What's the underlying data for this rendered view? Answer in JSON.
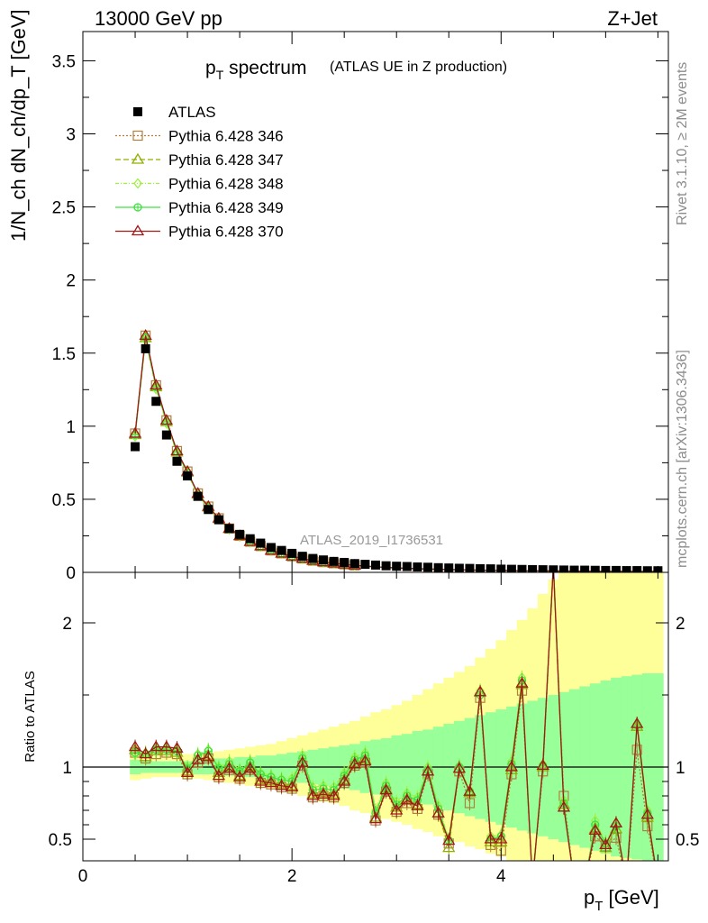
{
  "header": {
    "energy_label": "13000 GeV pp",
    "process_label": "Z+Jet"
  },
  "side_labels": {
    "rivet": "Rivet 3.1.10, ≥ 2M events",
    "mcplots": "mcplots.cern.ch [arXiv:1306.3436]"
  },
  "colors": {
    "atlas": "#000000",
    "p346": "#b08040",
    "p347": "#90b000",
    "p348": "#a0f040",
    "p349": "#40e040",
    "p370": "#a01818",
    "band_outer": "#ffff99",
    "band_inner": "#99ff99"
  },
  "chart_data": [
    {
      "type": "line",
      "title_main": "p",
      "title_sub": "T",
      "title_rest": " spectrum",
      "title_note": "(ATLAS UE in Z production)",
      "ylabel": "1/N_ch dN_ch/dp_T [GeV]",
      "watermark": "ATLAS_2019_I1736531",
      "xlim": [
        0,
        5.6
      ],
      "ylim": [
        0,
        3.7
      ],
      "yticks": [
        "0",
        "0.5",
        "1",
        "1.5",
        "2",
        "2.5",
        "3",
        "3.5"
      ],
      "x": [
        0.5,
        0.6,
        0.7,
        0.8,
        0.9,
        1.0,
        1.1,
        1.2,
        1.3,
        1.4,
        1.5,
        1.6,
        1.7,
        1.8,
        1.9,
        2.0,
        2.1,
        2.2,
        2.3,
        2.4,
        2.5,
        2.6,
        2.7,
        2.8,
        2.9,
        3.0,
        3.1,
        3.2,
        3.3,
        3.4,
        3.5,
        3.6,
        3.7,
        3.8,
        3.9,
        4.0,
        4.1,
        4.2,
        4.3,
        4.4,
        4.5,
        4.6,
        4.7,
        4.8,
        4.9,
        5.0,
        5.1,
        5.2,
        5.3,
        5.4,
        5.5
      ],
      "legend": [
        {
          "name": "ATLAS",
          "marker": "square"
        },
        {
          "name": "Pythia 6.428 346",
          "marker": "open-square"
        },
        {
          "name": "Pythia 6.428 347",
          "marker": "open-triangle"
        },
        {
          "name": "Pythia 6.428 348",
          "marker": "open-diamond"
        },
        {
          "name": "Pythia 6.428 349",
          "marker": "open-circle-cross"
        },
        {
          "name": "Pythia 6.428 370",
          "marker": "open-triangle"
        }
      ],
      "atlas_values": [
        0.86,
        1.53,
        1.17,
        0.94,
        0.76,
        0.66,
        0.52,
        0.43,
        0.36,
        0.3,
        0.26,
        0.23,
        0.2,
        0.17,
        0.15,
        0.13,
        0.11,
        0.095,
        0.085,
        0.075,
        0.068,
        0.06,
        0.055,
        0.05,
        0.045,
        0.042,
        0.04,
        0.037,
        0.035,
        0.032,
        0.03,
        0.028,
        0.027,
        0.025,
        0.024,
        0.022,
        0.021,
        0.02,
        0.019,
        0.018,
        0.017,
        0.016,
        0.015,
        0.015,
        0.014,
        0.013,
        0.013,
        0.012,
        0.012,
        0.011,
        0.011
      ],
      "pythia_values": [
        0.95,
        1.62,
        1.28,
        1.04,
        0.83,
        0.69,
        0.54,
        0.45,
        0.37,
        0.3,
        0.25,
        0.21,
        0.18,
        0.15,
        0.13,
        0.11,
        0.095,
        0.08,
        0.07,
        0.062,
        0.055,
        0.048,
        0.043,
        0.038,
        0.034,
        0.03,
        0.028,
        0.025,
        0.023,
        0.021,
        0.019,
        0.018,
        0.016,
        0.015,
        0.014,
        0.013,
        0.012,
        0.011,
        0.01,
        0.01,
        0.009,
        0.009,
        0.008,
        0.008,
        0.007,
        0.007,
        0.007,
        0.006,
        0.006,
        0.006,
        0.006
      ]
    },
    {
      "type": "line",
      "ylabel": "Ratio to ATLAS",
      "xlabel_main": "p",
      "xlabel_sub": "T",
      "xlabel_rest": " [GeV]",
      "xlim": [
        0,
        5.6
      ],
      "ylim": [
        0.35,
        2.35
      ],
      "xticks": [
        "0",
        "2",
        "4"
      ],
      "yticks": [
        "0.5",
        "1",
        "2"
      ],
      "x": [
        0.5,
        0.6,
        0.7,
        0.8,
        0.9,
        1.0,
        1.1,
        1.2,
        1.3,
        1.4,
        1.5,
        1.6,
        1.7,
        1.8,
        1.9,
        2.0,
        2.1,
        2.2,
        2.3,
        2.4,
        2.5,
        2.6,
        2.7,
        2.8,
        2.9,
        3.0,
        3.1,
        3.2,
        3.3,
        3.4,
        3.5,
        3.6,
        3.7,
        3.8,
        3.9,
        4.0,
        4.1,
        4.2,
        4.3,
        4.4,
        4.5,
        4.6,
        4.7,
        4.8,
        4.9,
        5.0,
        5.1,
        5.2,
        5.3,
        5.4,
        5.5
      ],
      "band_outer_lo": [
        0.91,
        0.92,
        0.93,
        0.93,
        0.93,
        0.92,
        0.92,
        0.91,
        0.9,
        0.89,
        0.88,
        0.87,
        0.86,
        0.85,
        0.84,
        0.82,
        0.8,
        0.78,
        0.76,
        0.75,
        0.73,
        0.7,
        0.68,
        0.66,
        0.64,
        0.62,
        0.6,
        0.57,
        0.55,
        0.52,
        0.5,
        0.48,
        0.45,
        0.43,
        0.4,
        0.38,
        0.35,
        0.35,
        0.35,
        0.35,
        0.35,
        0.35,
        0.35,
        0.35,
        0.35,
        0.35,
        0.35,
        0.35,
        0.35,
        0.35,
        0.35
      ],
      "band_outer_hi": [
        1.09,
        1.08,
        1.08,
        1.08,
        1.08,
        1.09,
        1.09,
        1.1,
        1.11,
        1.12,
        1.13,
        1.14,
        1.15,
        1.16,
        1.18,
        1.2,
        1.22,
        1.24,
        1.26,
        1.28,
        1.3,
        1.32,
        1.35,
        1.38,
        1.4,
        1.43,
        1.46,
        1.5,
        1.54,
        1.58,
        1.62,
        1.66,
        1.7,
        1.76,
        1.82,
        1.88,
        1.95,
        2.02,
        2.1,
        2.2,
        2.3,
        2.35,
        2.35,
        2.35,
        2.35,
        2.35,
        2.35,
        2.35,
        2.35,
        2.35,
        2.35
      ],
      "band_inner_lo": [
        0.95,
        0.96,
        0.96,
        0.96,
        0.96,
        0.96,
        0.95,
        0.95,
        0.94,
        0.94,
        0.93,
        0.93,
        0.92,
        0.92,
        0.91,
        0.9,
        0.89,
        0.88,
        0.87,
        0.86,
        0.85,
        0.84,
        0.82,
        0.81,
        0.8,
        0.78,
        0.77,
        0.75,
        0.74,
        0.72,
        0.7,
        0.68,
        0.66,
        0.64,
        0.62,
        0.6,
        0.58,
        0.56,
        0.54,
        0.52,
        0.5,
        0.48,
        0.46,
        0.44,
        0.42,
        0.4,
        0.38,
        0.37,
        0.36,
        0.35,
        0.35
      ],
      "band_inner_hi": [
        1.05,
        1.04,
        1.04,
        1.04,
        1.04,
        1.04,
        1.05,
        1.05,
        1.06,
        1.06,
        1.07,
        1.07,
        1.08,
        1.08,
        1.09,
        1.1,
        1.11,
        1.12,
        1.13,
        1.14,
        1.15,
        1.16,
        1.18,
        1.19,
        1.2,
        1.22,
        1.23,
        1.25,
        1.26,
        1.28,
        1.3,
        1.32,
        1.34,
        1.36,
        1.38,
        1.4,
        1.42,
        1.44,
        1.46,
        1.48,
        1.5,
        1.52,
        1.54,
        1.56,
        1.58,
        1.6,
        1.62,
        1.63,
        1.64,
        1.65,
        1.65
      ],
      "series": [
        {
          "name": "Pythia 6.428 346",
          "color_key": "p346",
          "values": [
            1.1,
            1.06,
            1.09,
            1.1,
            1.09,
            0.95,
            1.03,
            1.06,
            0.93,
            0.98,
            0.92,
            0.98,
            0.89,
            0.88,
            0.86,
            0.85,
            1.01,
            0.79,
            0.8,
            0.79,
            0.89,
            1.01,
            1.03,
            0.63,
            0.83,
            0.69,
            0.75,
            0.71,
            0.95,
            0.67,
            0.47,
            0.97,
            0.75,
            1.48,
            0.46,
            0.42,
            0.95,
            1.53,
            0.2,
            0.97,
            2.4,
            0.8,
            0.2,
            0.2,
            0.52,
            0.45,
            0.51,
            0.2,
            1.12,
            0.59,
            0.2
          ]
        },
        {
          "name": "Pythia 6.428 347",
          "color_key": "p347",
          "values": [
            1.12,
            1.07,
            1.11,
            1.11,
            1.1,
            0.97,
            1.05,
            1.08,
            0.96,
            1.0,
            0.94,
            1.0,
            0.91,
            0.9,
            0.88,
            0.87,
            1.03,
            0.81,
            0.82,
            0.81,
            0.91,
            1.03,
            1.05,
            0.65,
            0.85,
            0.72,
            0.78,
            0.74,
            0.97,
            0.68,
            0.44,
            0.99,
            0.82,
            1.52,
            0.48,
            0.48,
            0.98,
            1.57,
            0.2,
            1.0,
            2.4,
            0.74,
            0.2,
            0.2,
            0.57,
            0.44,
            0.57,
            0.2,
            1.28,
            0.65,
            0.2
          ]
        },
        {
          "name": "Pythia 6.428 348",
          "color_key": "p348",
          "values": [
            1.09,
            1.1,
            1.13,
            1.13,
            1.12,
            1.0,
            1.09,
            1.12,
            1.0,
            1.04,
            0.98,
            1.04,
            0.96,
            0.94,
            0.92,
            0.92,
            1.08,
            0.86,
            0.87,
            0.86,
            0.96,
            1.07,
            1.1,
            0.7,
            0.89,
            0.76,
            0.82,
            0.79,
            1.0,
            0.73,
            0.5,
            1.01,
            0.84,
            1.53,
            0.52,
            0.53,
            1.04,
            1.62,
            0.2,
            1.02,
            2.4,
            0.77,
            0.2,
            0.2,
            0.63,
            0.48,
            0.6,
            0.2,
            1.3,
            0.7,
            0.2
          ]
        },
        {
          "name": "Pythia 6.428 349",
          "color_key": "p349",
          "values": [
            1.1,
            1.09,
            1.12,
            1.12,
            1.11,
            0.99,
            1.08,
            1.11,
            0.99,
            1.02,
            0.97,
            1.03,
            0.95,
            0.93,
            0.91,
            0.9,
            1.06,
            0.84,
            0.85,
            0.84,
            0.94,
            1.05,
            1.08,
            0.68,
            0.87,
            0.74,
            0.8,
            0.77,
            0.98,
            0.71,
            0.49,
            1.0,
            0.83,
            1.5,
            0.5,
            0.52,
            1.02,
            1.6,
            0.2,
            1.01,
            2.4,
            0.75,
            0.2,
            0.2,
            0.6,
            0.47,
            0.59,
            0.2,
            1.29,
            0.68,
            0.2
          ]
        },
        {
          "name": "Pythia 6.428 370",
          "color_key": "p370",
          "values": [
            1.14,
            1.09,
            1.14,
            1.14,
            1.13,
            0.96,
            1.05,
            1.07,
            0.94,
            0.99,
            0.93,
            0.99,
            0.9,
            0.89,
            0.87,
            0.86,
            1.03,
            0.8,
            0.81,
            0.8,
            0.9,
            1.02,
            1.04,
            0.64,
            0.84,
            0.7,
            0.77,
            0.73,
            0.97,
            0.68,
            0.49,
            0.99,
            0.83,
            1.52,
            0.5,
            0.5,
            1.0,
            1.58,
            0.2,
            1.01,
            2.4,
            0.72,
            0.2,
            0.2,
            0.56,
            0.46,
            0.61,
            0.2,
            1.3,
            0.67,
            0.2
          ]
        }
      ]
    }
  ]
}
